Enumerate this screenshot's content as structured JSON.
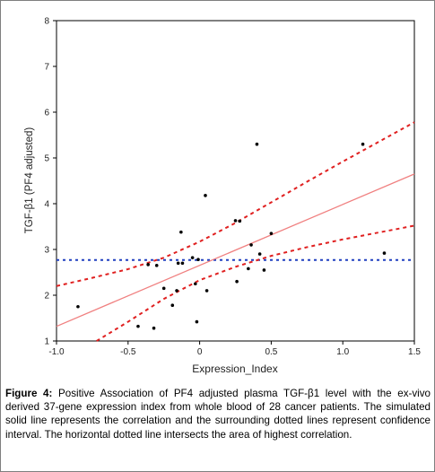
{
  "caption": {
    "label": "Figure 4:",
    "text": "Positive Association of PF4 adjusted plasma TGF-β1 level with the ex-vivo derived 37-gene expression index from whole blood of 28 cancer patients. The simulated solid line represents the correlation and the surrounding dotted lines represent confidence interval.  The horizontal dotted line intersects the area of highest correlation."
  },
  "chart_data": {
    "type": "scatter",
    "title": "",
    "xlabel": "Expression_Index",
    "ylabel": "TGF-β1 (PF4 adjusted)",
    "xlim": [
      -1.0,
      1.5
    ],
    "ylim": [
      1,
      8
    ],
    "x_ticks": [
      -1.0,
      -0.5,
      0,
      0.5,
      1.0,
      1.5
    ],
    "x_tick_labels": [
      "-1.0",
      "-0.5",
      "0",
      "0.5",
      "1.0",
      "1.5"
    ],
    "y_ticks": [
      1,
      2,
      3,
      4,
      5,
      6,
      7,
      8
    ],
    "y_tick_labels": [
      "1",
      "2",
      "3",
      "4",
      "5",
      "6",
      "7",
      "8"
    ],
    "grid": false,
    "colors": {
      "points": "#000000",
      "fit": "#f08080",
      "ci": "#e02020",
      "hline": "#1f3fbf"
    },
    "points": [
      {
        "x": -0.85,
        "y": 1.75
      },
      {
        "x": -0.43,
        "y": 1.32
      },
      {
        "x": -0.36,
        "y": 2.67
      },
      {
        "x": -0.32,
        "y": 1.28
      },
      {
        "x": -0.3,
        "y": 2.65
      },
      {
        "x": -0.25,
        "y": 2.15
      },
      {
        "x": -0.19,
        "y": 1.78
      },
      {
        "x": -0.16,
        "y": 2.1
      },
      {
        "x": -0.15,
        "y": 2.7
      },
      {
        "x": -0.13,
        "y": 3.38
      },
      {
        "x": -0.12,
        "y": 2.7
      },
      {
        "x": -0.05,
        "y": 2.82
      },
      {
        "x": -0.03,
        "y": 2.25
      },
      {
        "x": -0.02,
        "y": 1.42
      },
      {
        "x": 0.04,
        "y": 4.18
      },
      {
        "x": 0.05,
        "y": 2.1
      },
      {
        "x": 0.25,
        "y": 3.63
      },
      {
        "x": 0.26,
        "y": 2.3
      },
      {
        "x": 0.28,
        "y": 3.62
      },
      {
        "x": 0.34,
        "y": 2.58
      },
      {
        "x": 0.36,
        "y": 3.1
      },
      {
        "x": 0.4,
        "y": 5.3
      },
      {
        "x": 0.42,
        "y": 2.9
      },
      {
        "x": 0.45,
        "y": 2.55
      },
      {
        "x": 0.5,
        "y": 3.35
      },
      {
        "x": 1.14,
        "y": 5.3
      },
      {
        "x": 1.29,
        "y": 2.92
      },
      {
        "x": -0.01,
        "y": 2.78
      }
    ],
    "fit_line": {
      "x": [
        -1.0,
        1.5
      ],
      "y": [
        1.32,
        4.65
      ]
    },
    "ci_upper": {
      "x": [
        -1.0,
        -0.75,
        -0.5,
        -0.25,
        0.0,
        0.25,
        0.5,
        0.75,
        1.0,
        1.25,
        1.5
      ],
      "y": [
        2.2,
        2.38,
        2.57,
        2.82,
        3.17,
        3.58,
        4.03,
        4.48,
        4.92,
        5.35,
        5.78
      ]
    },
    "ci_lower": {
      "x": [
        -0.72,
        -0.5,
        -0.25,
        0.0,
        0.25,
        0.5,
        0.75,
        1.0,
        1.25,
        1.5
      ],
      "y": [
        1.0,
        1.42,
        1.92,
        2.33,
        2.62,
        2.86,
        3.05,
        3.22,
        3.37,
        3.52
      ]
    },
    "hline": {
      "y": 2.77
    }
  }
}
